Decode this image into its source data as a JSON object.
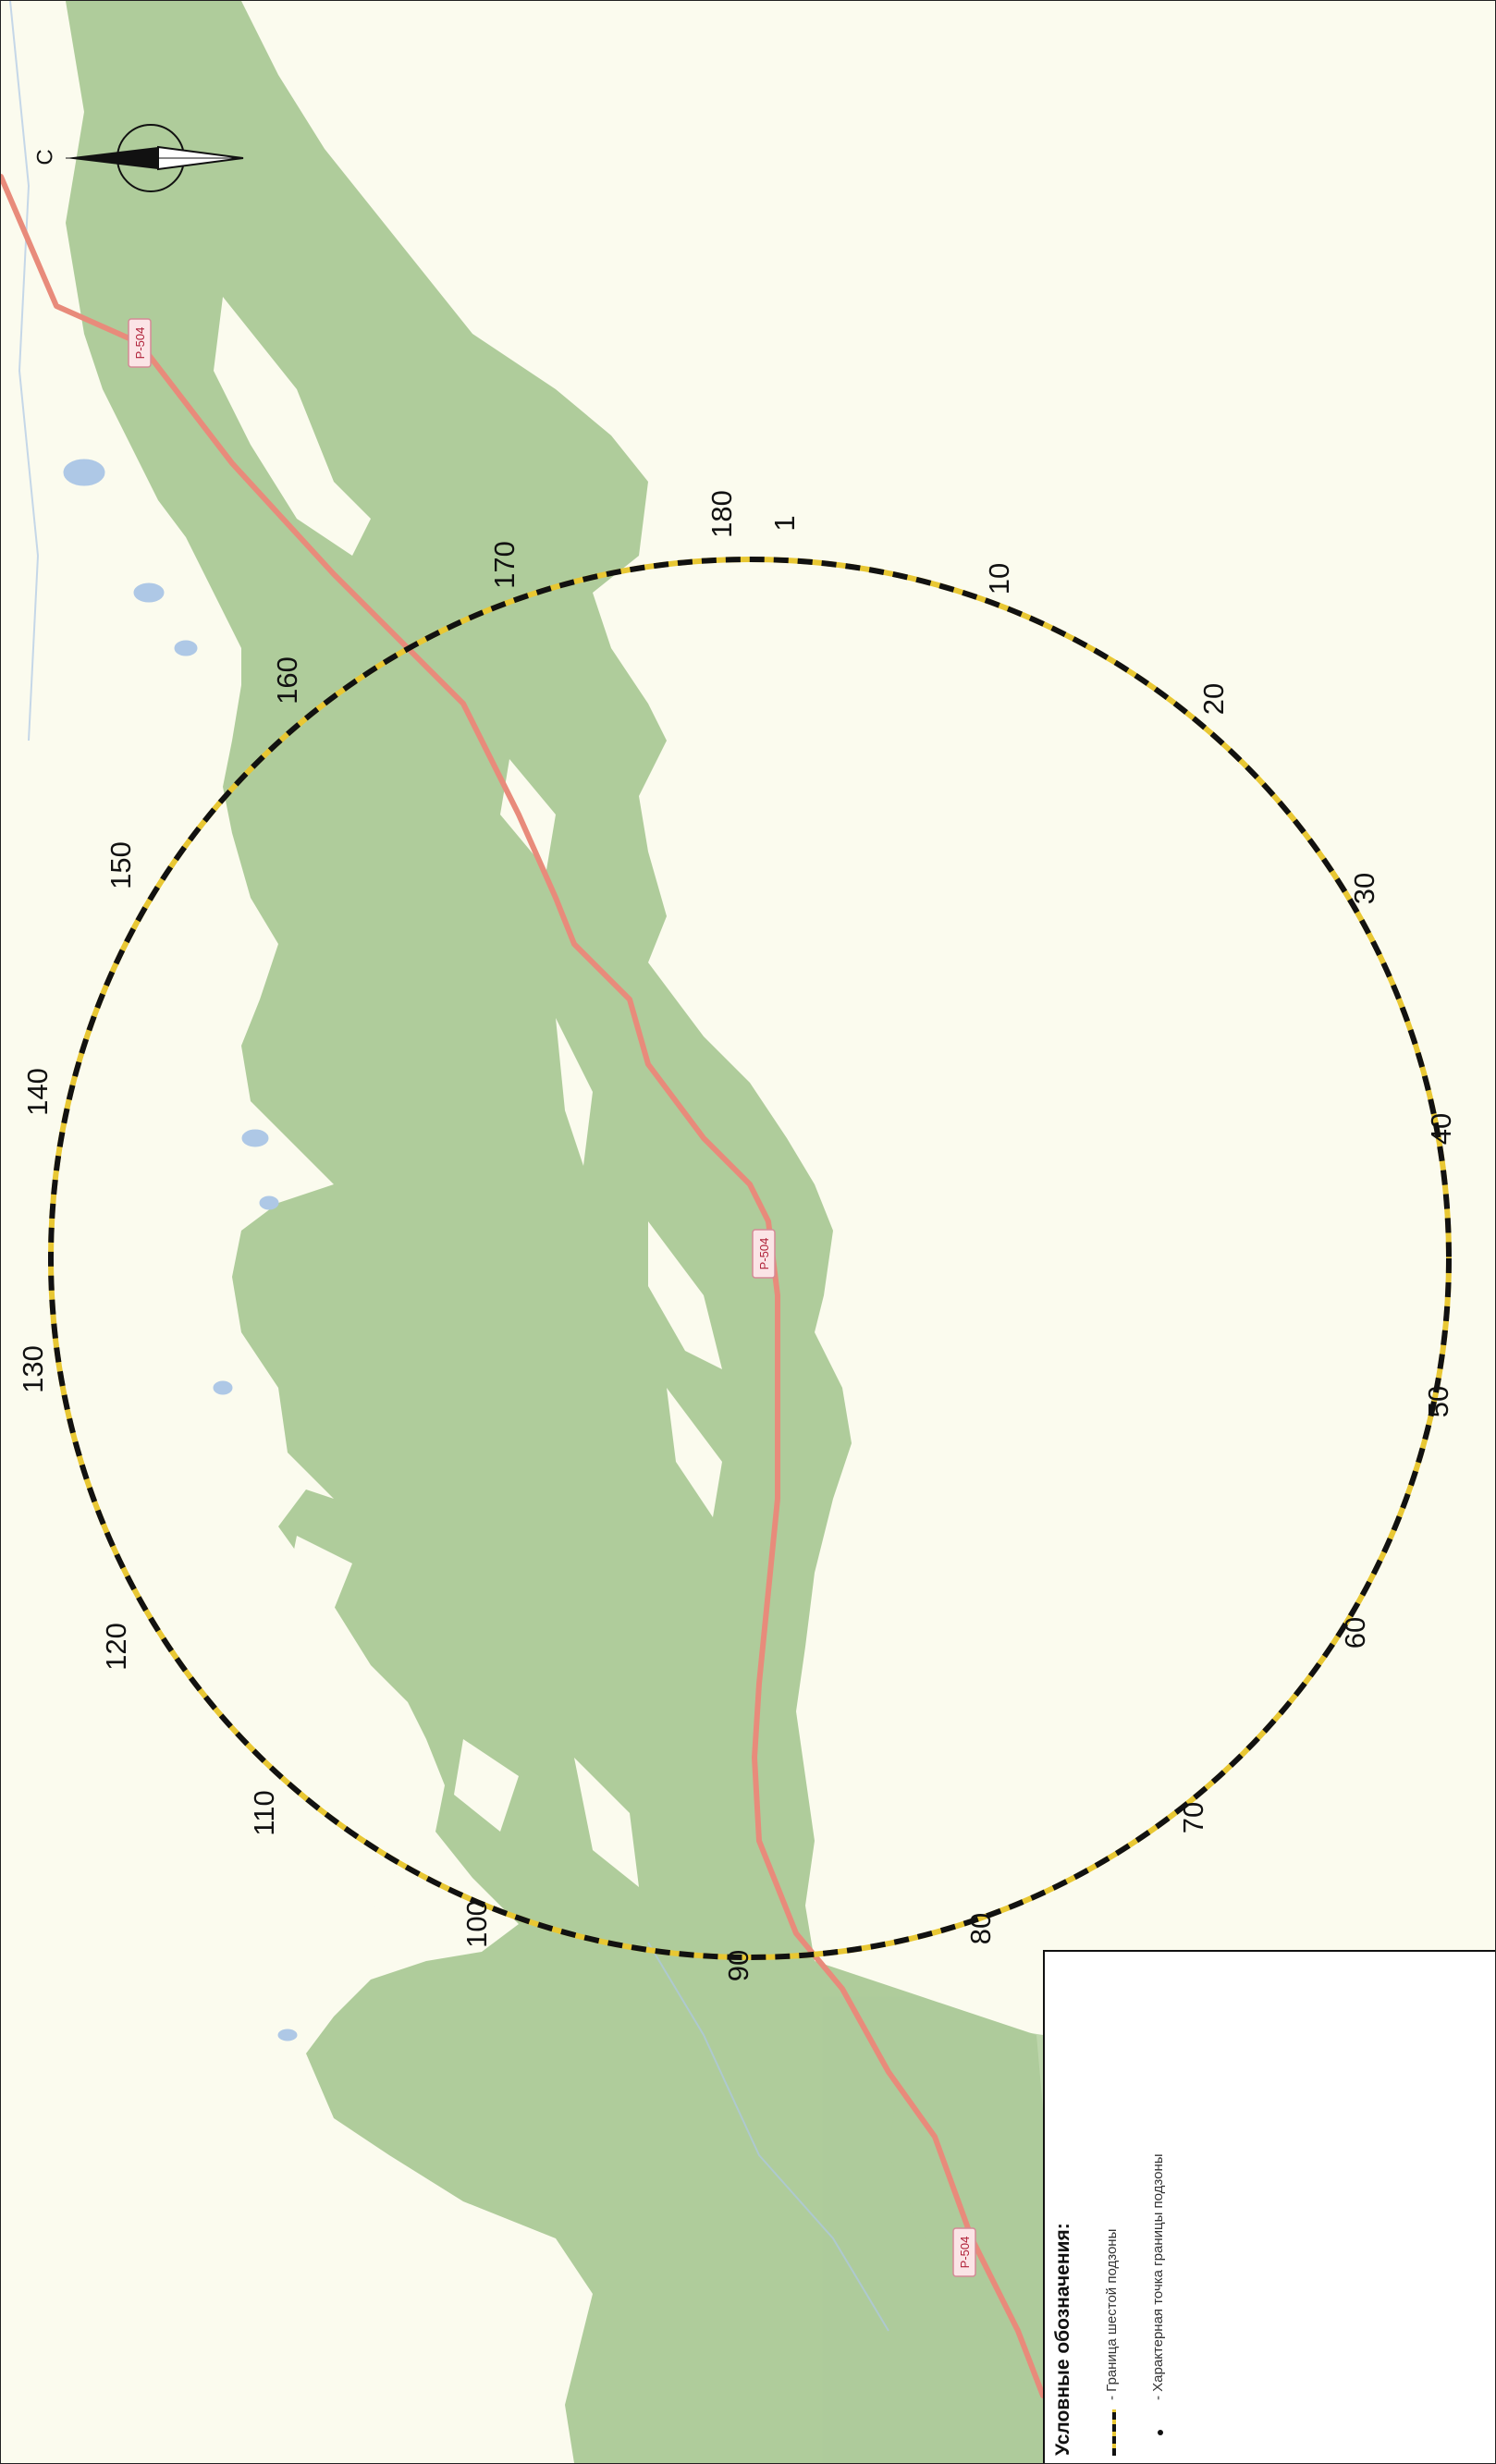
{
  "map": {
    "road_label": "Р-504",
    "compass_letter": "С",
    "boundary_points": [
      "180",
      "1",
      "10",
      "20",
      "30",
      "40",
      "50",
      "60",
      "70",
      "80",
      "90",
      "100",
      "110",
      "120",
      "130",
      "140",
      "150",
      "160",
      "170"
    ],
    "colors": {
      "background": "#fbfbee",
      "forest": "#a8c894",
      "road": "#e88b7b",
      "water": "#aec8e6",
      "boundary_dash": "#e8c733",
      "boundary_line": "#111111"
    }
  },
  "legend": {
    "title": "Условные обозначения:",
    "items": [
      {
        "label": "- Граница шестой подзоны",
        "symbol": "dashed-boundary-line"
      },
      {
        "label": "- Характерная точка границы подзоны",
        "symbol": "boundary-point-dot"
      }
    ]
  }
}
